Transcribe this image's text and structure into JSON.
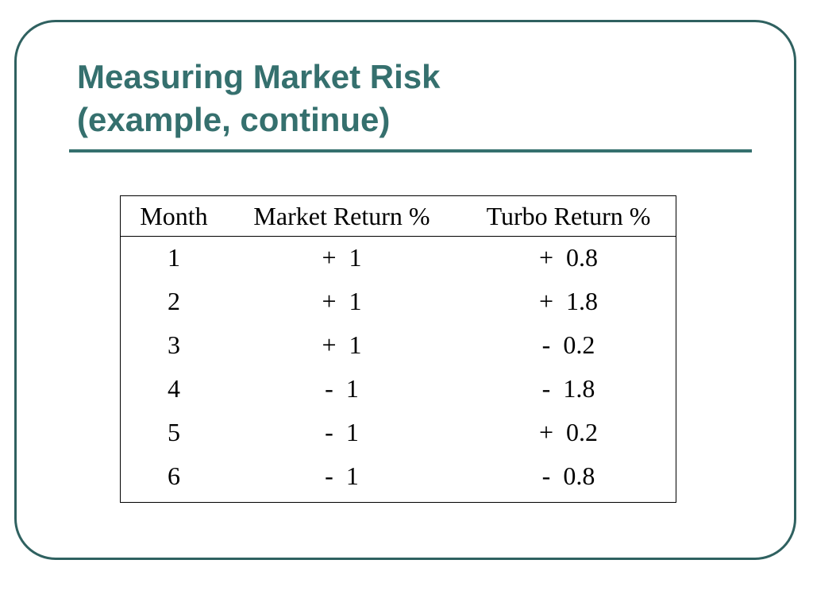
{
  "title": {
    "line1": "Measuring Market Risk",
    "line2": "(example, continue)"
  },
  "colors": {
    "accent": "#35706e",
    "frame": "#2f6160"
  },
  "table": {
    "headers": [
      "Month",
      "Market Return %",
      "Turbo Return %"
    ],
    "rows": [
      {
        "month": "1",
        "market": "+  1",
        "turbo": "+  0.8"
      },
      {
        "month": "2",
        "market": "+  1",
        "turbo": "+  1.8"
      },
      {
        "month": "3",
        "market": "+  1",
        "turbo": "-  0.2"
      },
      {
        "month": "4",
        "market": "-  1",
        "turbo": "-  1.8"
      },
      {
        "month": "5",
        "market": "-  1",
        "turbo": "+  0.2"
      },
      {
        "month": "6",
        "market": "-  1",
        "turbo": "-  0.8"
      }
    ]
  }
}
